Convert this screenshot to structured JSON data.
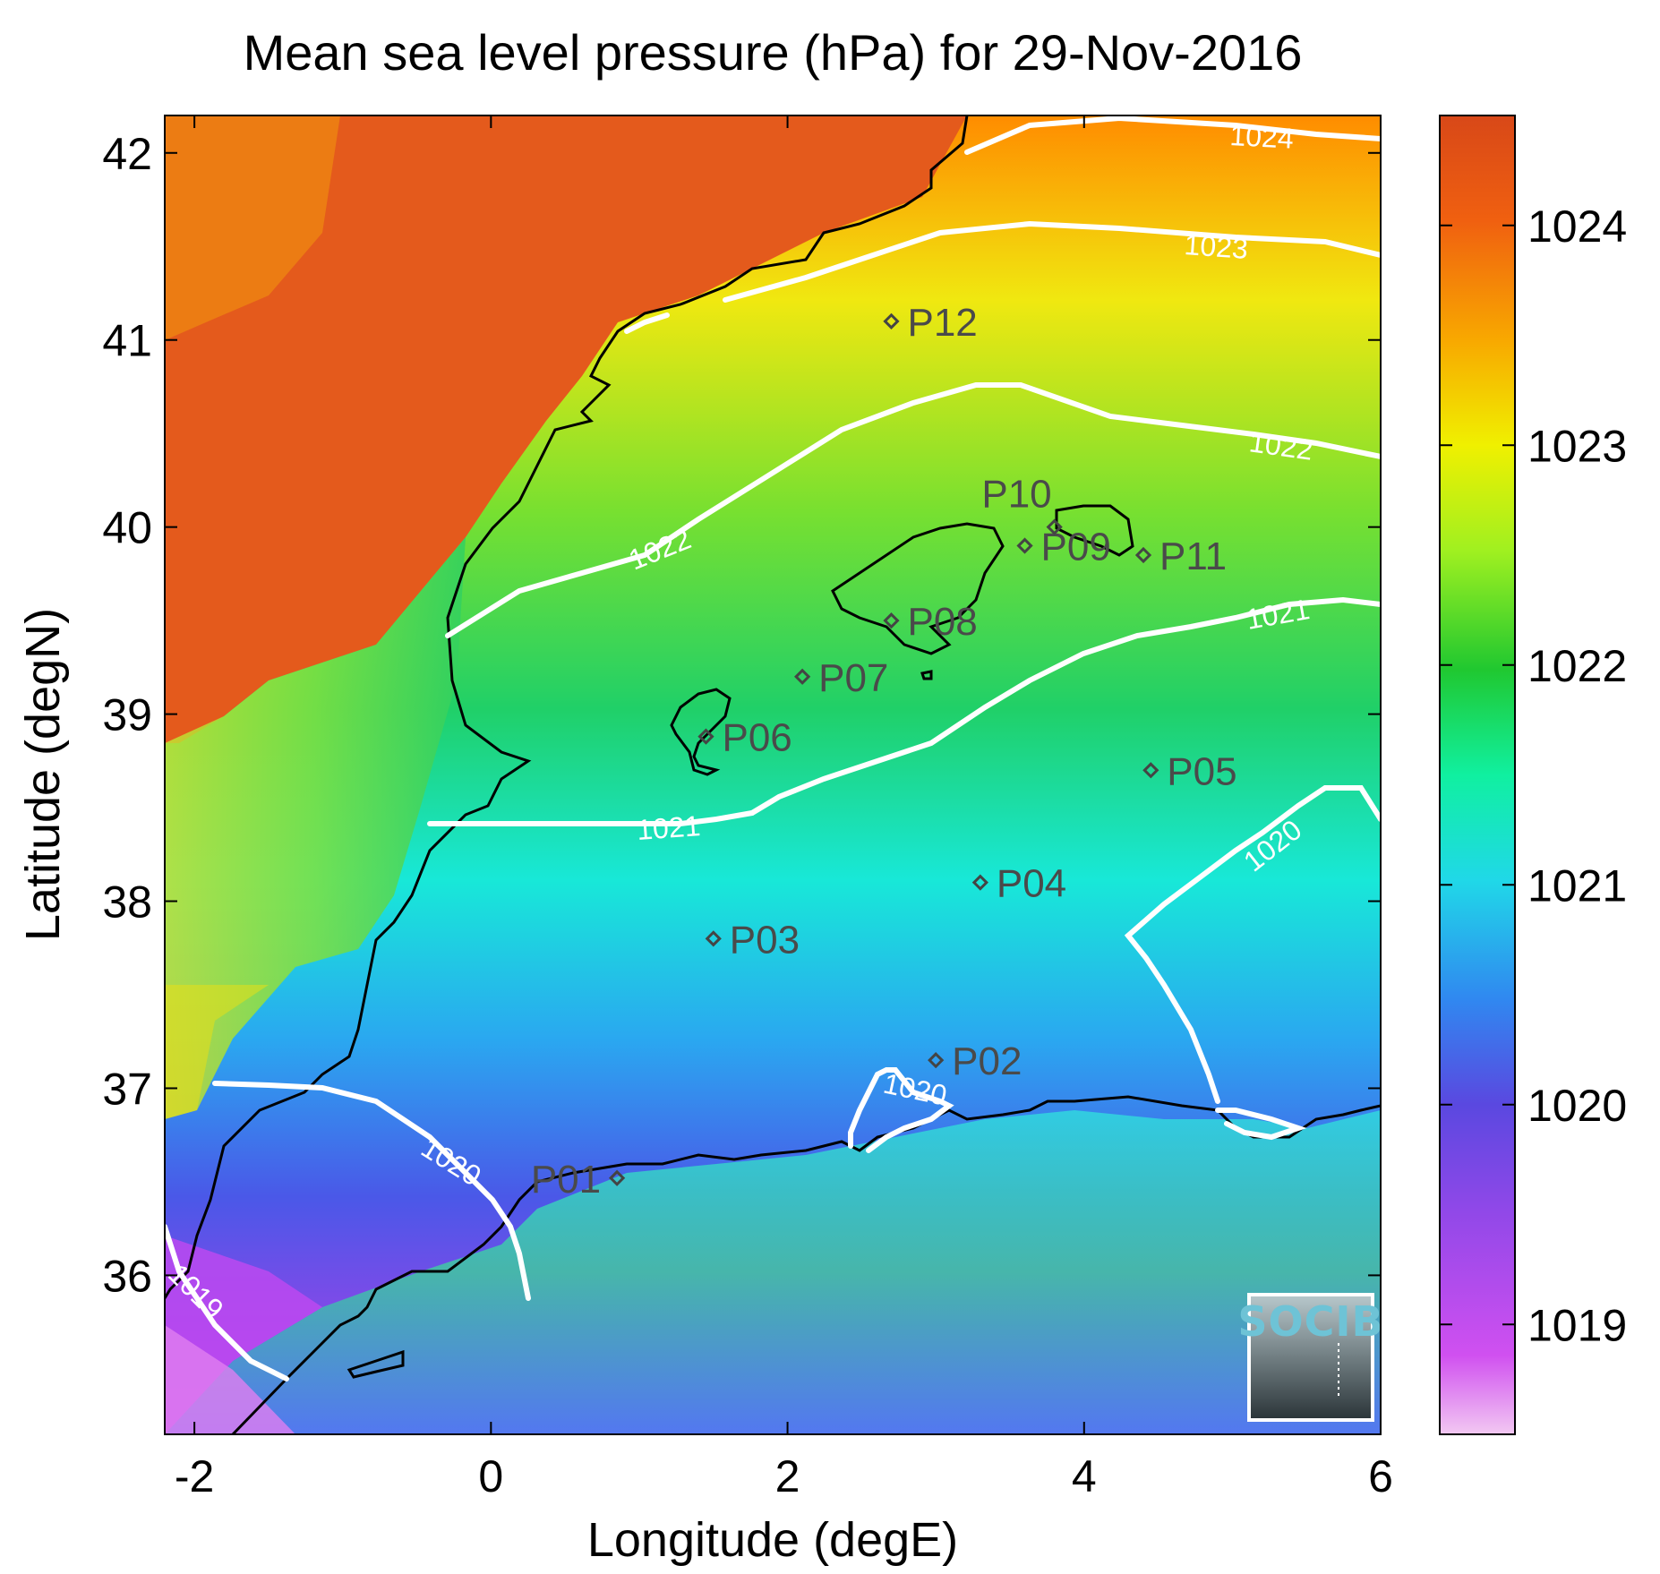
{
  "map": {
    "title": "Mean sea level pressure (hPa) for 29-Nov-2016",
    "xlabel": "Longitude (degE)",
    "ylabel": "Latitude (degN)",
    "x_ticks": [
      -2,
      0,
      2,
      4,
      6
    ],
    "y_ticks": [
      36,
      37,
      38,
      39,
      40,
      41,
      42
    ],
    "xlim": [
      -2.2,
      6.0
    ],
    "ylim": [
      35.15,
      42.2
    ],
    "colorbar": {
      "ticks": [
        1019,
        1020,
        1021,
        1022,
        1023,
        1024
      ],
      "range": [
        1018.5,
        1024.5
      ],
      "colors": [
        "#f2c8f2",
        "#c040f0",
        "#6a44e0",
        "#3070f0",
        "#20d8e8",
        "#10f0a0",
        "#20c830",
        "#b8f020",
        "#f0f000",
        "#f8a800",
        "#e85818",
        "#d84818"
      ]
    },
    "contour_labels": [
      "1024",
      "1023",
      "1022",
      "1022",
      "1021",
      "1021",
      "1020",
      "1020",
      "1020",
      "1019"
    ],
    "points": [
      {
        "label": "P01",
        "lon": 0.85,
        "lat": 36.52
      },
      {
        "label": "P02",
        "lon": 3.0,
        "lat": 37.15
      },
      {
        "label": "P03",
        "lon": 1.5,
        "lat": 37.8
      },
      {
        "label": "P04",
        "lon": 3.3,
        "lat": 38.1
      },
      {
        "label": "P05",
        "lon": 4.45,
        "lat": 38.7
      },
      {
        "label": "P06",
        "lon": 1.45,
        "lat": 38.88
      },
      {
        "label": "P07",
        "lon": 2.1,
        "lat": 39.2
      },
      {
        "label": "P08",
        "lon": 2.7,
        "lat": 39.5
      },
      {
        "label": "P09",
        "lon": 3.6,
        "lat": 39.9
      },
      {
        "label": "P10",
        "lon": 3.8,
        "lat": 40.0
      },
      {
        "label": "P11",
        "lon": 4.4,
        "lat": 39.85
      },
      {
        "label": "P12",
        "lon": 2.7,
        "lat": 41.1
      }
    ],
    "logo": "SOCIB"
  }
}
